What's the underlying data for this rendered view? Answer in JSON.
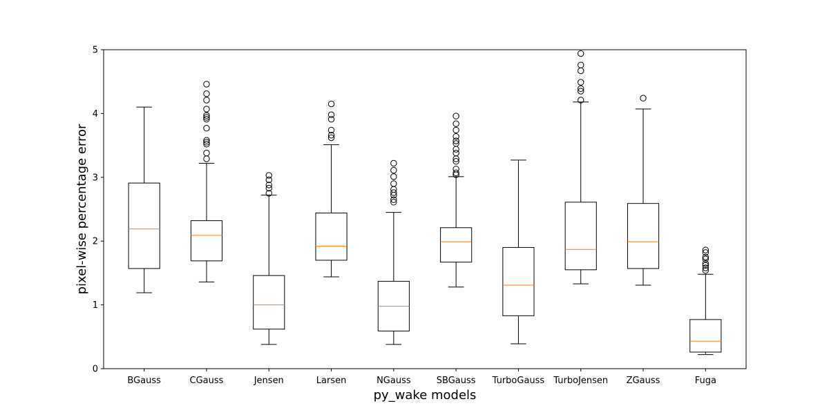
{
  "chart_data": {
    "type": "boxplot",
    "xlabel": "py_wake models",
    "ylabel": "pixel-wise percentage error",
    "ylim": [
      0,
      5
    ],
    "yticks": [
      0,
      1,
      2,
      3,
      4,
      5
    ],
    "grid": false,
    "colors": {
      "box": "#000000",
      "median": "#ff7f0e",
      "outlier": "#000000",
      "background": "#ffffff"
    },
    "categories": [
      "BGauss",
      "CGauss",
      "Jensen",
      "Larsen",
      "NGauss",
      "SBGauss",
      "TurboGauss",
      "TurboJensen",
      "ZGauss",
      "Fuga"
    ],
    "boxes": [
      {
        "name": "BGauss",
        "whislo": 1.19,
        "q1": 1.57,
        "med": 2.19,
        "q3": 2.91,
        "whishi": 4.1,
        "fliers": []
      },
      {
        "name": "CGauss",
        "whislo": 1.36,
        "q1": 1.69,
        "med": 2.09,
        "q3": 2.32,
        "whishi": 3.22,
        "fliers": [
          3.29,
          3.38,
          3.52,
          3.55,
          3.58,
          3.77,
          3.91,
          3.94,
          3.97,
          4.07,
          4.21,
          4.31,
          4.46
        ]
      },
      {
        "name": "Jensen",
        "whislo": 0.38,
        "q1": 0.62,
        "med": 1.0,
        "q3": 1.46,
        "whishi": 2.72,
        "fliers": [
          2.75,
          2.83,
          2.88,
          2.96,
          3.03
        ]
      },
      {
        "name": "Larsen",
        "whislo": 1.44,
        "q1": 1.7,
        "med": 1.92,
        "q3": 2.44,
        "whishi": 3.51,
        "fliers": [
          3.62,
          3.66,
          3.74,
          3.91,
          3.98,
          4.15
        ]
      },
      {
        "name": "NGauss",
        "whislo": 0.38,
        "q1": 0.59,
        "med": 0.98,
        "q3": 1.37,
        "whishi": 2.45,
        "fliers": [
          2.61,
          2.65,
          2.72,
          2.76,
          2.81,
          2.9,
          3.01,
          3.11,
          3.22
        ]
      },
      {
        "name": "SBGauss",
        "whislo": 1.28,
        "q1": 1.67,
        "med": 1.99,
        "q3": 2.21,
        "whishi": 3.01,
        "fliers": [
          3.04,
          3.07,
          3.13,
          3.25,
          3.29,
          3.38,
          3.44,
          3.53,
          3.57,
          3.64,
          3.74,
          3.84,
          3.96
        ]
      },
      {
        "name": "TurboGauss",
        "whislo": 0.39,
        "q1": 0.83,
        "med": 1.31,
        "q3": 1.9,
        "whishi": 3.27,
        "fliers": []
      },
      {
        "name": "TurboJensen",
        "whislo": 1.33,
        "q1": 1.55,
        "med": 1.87,
        "q3": 2.61,
        "whishi": 4.18,
        "fliers": [
          4.21,
          4.35,
          4.39,
          4.49,
          4.67,
          4.76,
          4.94
        ]
      },
      {
        "name": "ZGauss",
        "whislo": 1.31,
        "q1": 1.57,
        "med": 1.99,
        "q3": 2.59,
        "whishi": 4.07,
        "fliers": [
          4.24
        ]
      },
      {
        "name": "Fuga",
        "whislo": 0.22,
        "q1": 0.26,
        "med": 0.43,
        "q3": 0.77,
        "whishi": 1.48,
        "fliers": [
          1.54,
          1.58,
          1.62,
          1.65,
          1.72,
          1.75,
          1.82,
          1.86
        ]
      }
    ]
  }
}
